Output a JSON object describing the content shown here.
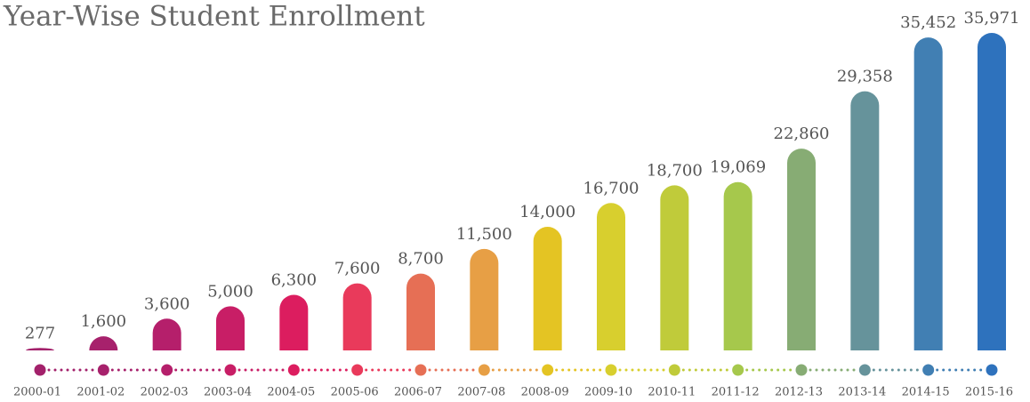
{
  "chart_data": {
    "type": "bar",
    "title": "Year-Wise Student Enrollment",
    "categories": [
      "2000-01",
      "2001-02",
      "2002-03",
      "2003-04",
      "2004-05",
      "2005-06",
      "2006-07",
      "2007-08",
      "2008-09",
      "2009-10",
      "2010-11",
      "2011-12",
      "2012-13",
      "2013-14",
      "2014-15",
      "2015-16"
    ],
    "values": [
      277,
      1600,
      3600,
      5000,
      6300,
      7600,
      8700,
      11500,
      14000,
      16700,
      18700,
      19069,
      22860,
      29358,
      35452,
      35971
    ],
    "value_labels": [
      "277",
      "1,600",
      "3,600",
      "5,000",
      "6,300",
      "7,600",
      "8,700",
      "11,500",
      "14,000",
      "16,700",
      "18,700",
      "19,069",
      "22,860",
      "29,358",
      "35,452",
      "35,971"
    ],
    "colors": [
      "#a3216b",
      "#a7216c",
      "#b51f6b",
      "#c81e66",
      "#dc1d5f",
      "#e93a5b",
      "#e66f55",
      "#e79f45",
      "#e4c423",
      "#d8cf2e",
      "#c0cb3a",
      "#a6c84c",
      "#87ac74",
      "#66939b",
      "#417fb3",
      "#2e72bd"
    ]
  }
}
